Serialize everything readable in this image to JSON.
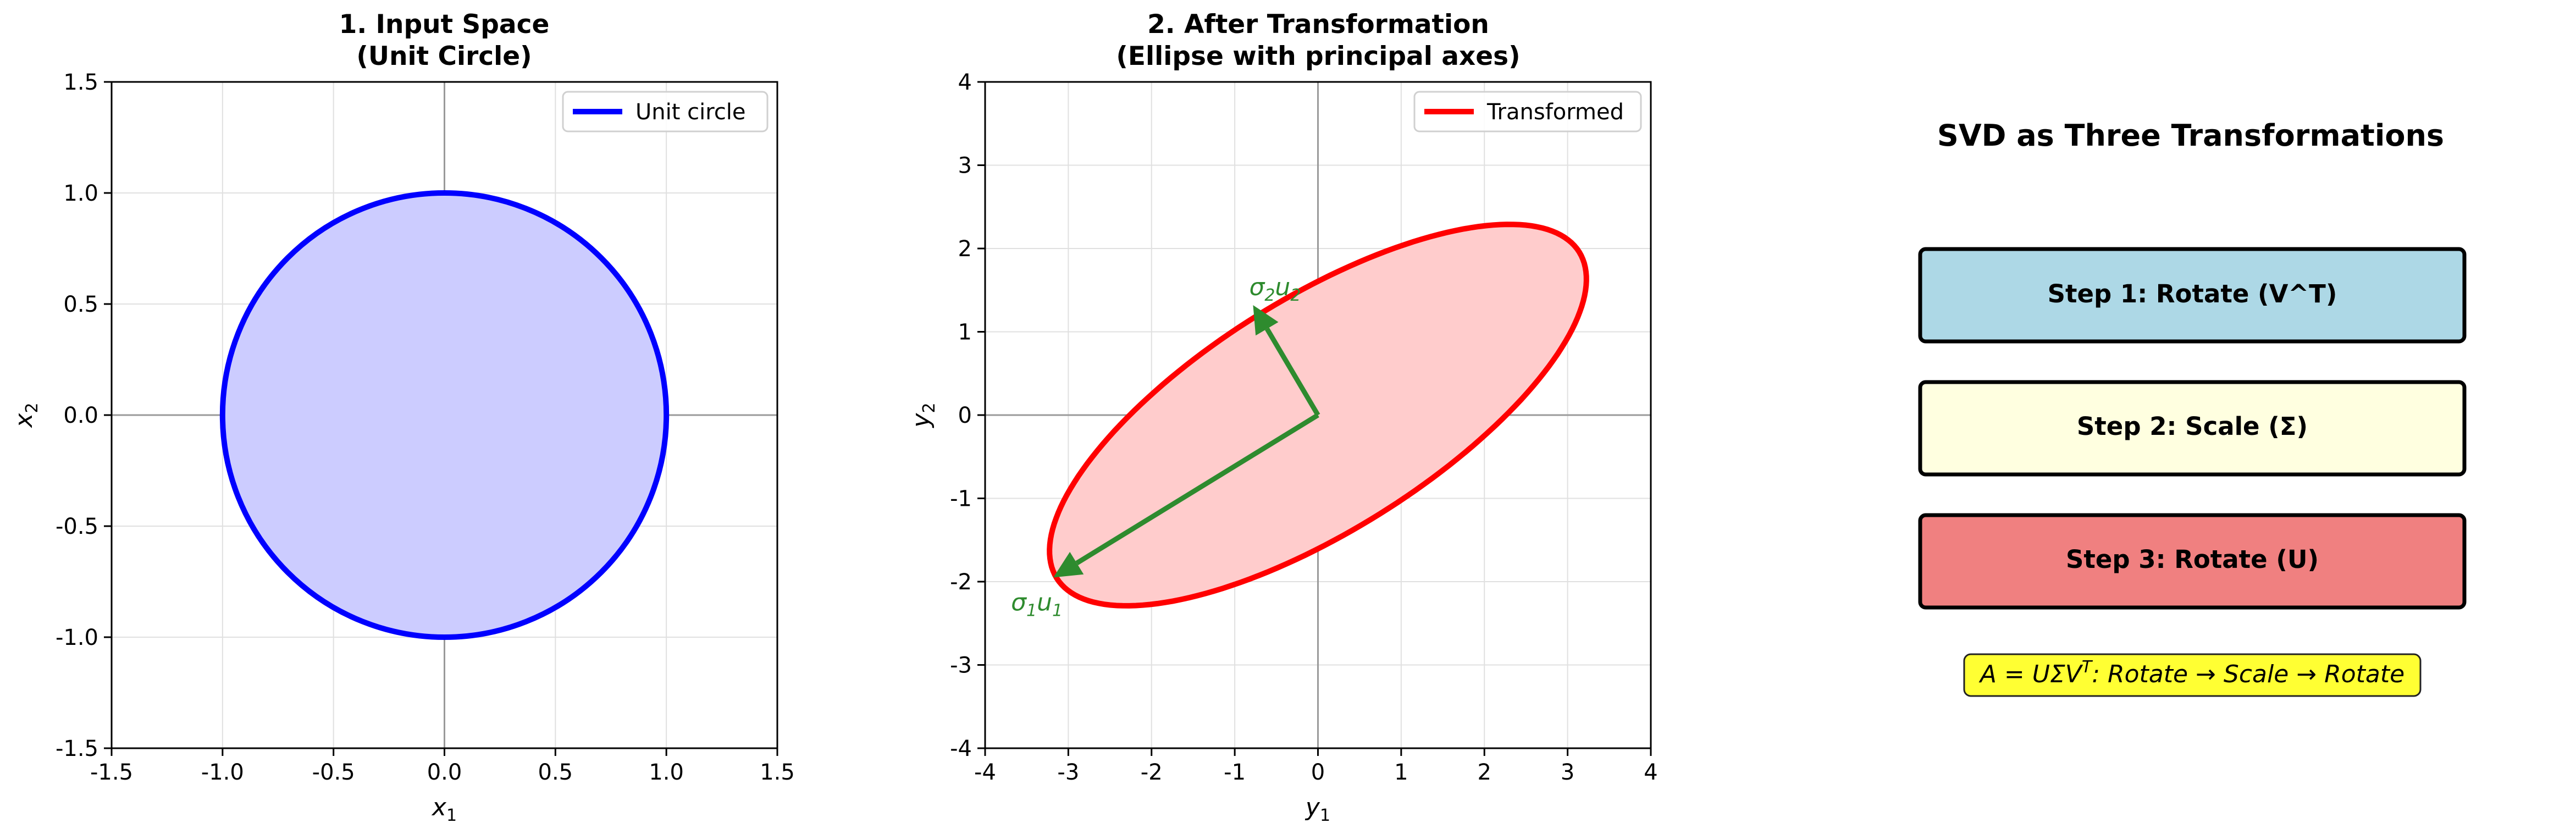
{
  "chart_data": [
    {
      "type": "line",
      "title": "1. Input Space\n(Unit Circle)",
      "xlabel": "x1",
      "ylabel": "x2",
      "xlim": [
        -1.5,
        1.5
      ],
      "ylim": [
        -1.5,
        1.5
      ],
      "xticks": [
        "-1.5",
        "-1.0",
        "-0.5",
        "0.0",
        "0.5",
        "1.0",
        "1.5"
      ],
      "yticks": [
        "-1.5",
        "-1.0",
        "-0.5",
        "0.0",
        "0.5",
        "1.0",
        "1.5"
      ],
      "grid": true,
      "legend_position": "upper right",
      "series": [
        {
          "name": "Unit circle",
          "color": "#0000ff",
          "fill": "#ccccff",
          "shape": "circle",
          "center": [
            0,
            0
          ],
          "radius": 1
        }
      ]
    },
    {
      "type": "line",
      "title": "2. After Transformation\n(Ellipse with principal axes)",
      "xlabel": "y1",
      "ylabel": "y2",
      "xlim": [
        -4,
        4
      ],
      "ylim": [
        -4,
        4
      ],
      "xticks": [
        "-4",
        "-3",
        "-2",
        "-1",
        "0",
        "1",
        "2",
        "3",
        "4"
      ],
      "yticks": [
        "-4",
        "-3",
        "-2",
        "-1",
        "0",
        "1",
        "2",
        "3",
        "4"
      ],
      "grid": true,
      "legend_position": "upper right",
      "series": [
        {
          "name": "Transformed",
          "color": "#ff0000",
          "fill": "#ffcccc",
          "shape": "ellipse",
          "center": [
            0,
            0
          ],
          "semi_major": 3.7,
          "semi_minor": 1.4,
          "major_dir": [
            0.85,
            0.53
          ]
        }
      ],
      "arrows": [
        {
          "label": "σ1u1",
          "from": [
            0,
            0
          ],
          "to": [
            -3.18,
            -1.95
          ],
          "color": "#2e8b2e"
        },
        {
          "label": "σ2u2",
          "from": [
            0,
            0
          ],
          "to": [
            -0.78,
            1.32
          ],
          "color": "#2e8b2e"
        }
      ]
    }
  ],
  "panel3": {
    "title": "SVD as Three Transformations",
    "steps": [
      {
        "label": "Step 1: Rotate (V^T)",
        "color": "#add8e6"
      },
      {
        "label": "Step 2: Scale (Σ)",
        "color": "#ffffe0"
      },
      {
        "label": "Step 3: Rotate (U)",
        "color": "#f08080"
      }
    ],
    "formula": {
      "prefix": "A",
      "equals": " = ",
      "body": "UΣV",
      "sup": "T",
      "suffix": ": Rotate → Scale → Rotate",
      "bg": "#ffff33"
    }
  }
}
